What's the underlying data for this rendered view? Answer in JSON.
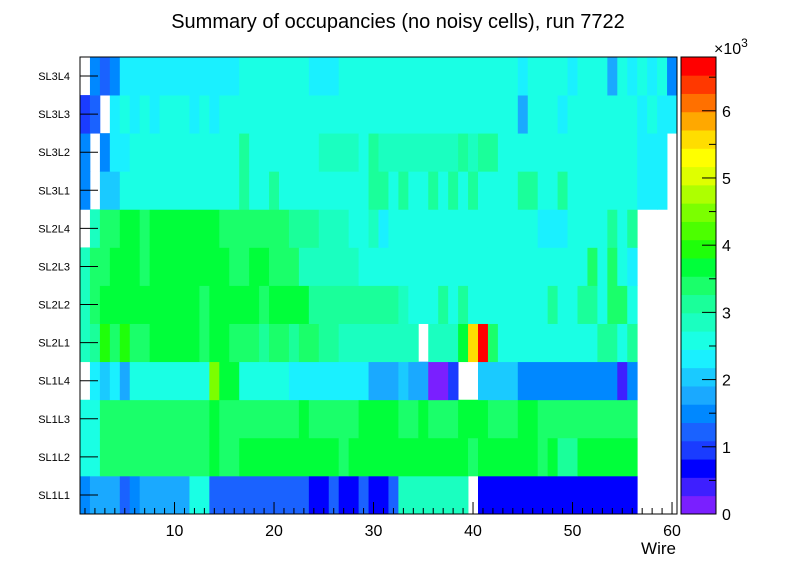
{
  "chart_data": {
    "type": "heatmap",
    "title": "Summary of occupancies (no noisy cells), run 7722",
    "xlabel": "Wire",
    "ylabel": "",
    "xlim": [
      0.5,
      60.5
    ],
    "x_ticks": [
      10,
      20,
      30,
      40,
      50,
      60
    ],
    "y_categories": [
      "SL1L1",
      "SL1L2",
      "SL1L3",
      "SL1L4",
      "SL2L1",
      "SL2L2",
      "SL2L3",
      "SL2L4",
      "SL3L1",
      "SL3L2",
      "SL3L3",
      "SL3L4"
    ],
    "color_scale": {
      "min": 0,
      "max": 6.8,
      "exponent_label": "×10",
      "exponent_power": "3",
      "ticks": [
        0,
        1,
        2,
        3,
        4,
        5,
        6
      ],
      "palette": [
        "#7a1fff",
        "#3e1fff",
        "#0000ff",
        "#1a3cff",
        "#1a62ff",
        "#0088ff",
        "#1aa9ff",
        "#1acaff",
        "#1af0ff",
        "#1affe4",
        "#1affc0",
        "#1aff9a",
        "#1aff6a",
        "#00ff3a",
        "#1fff0a",
        "#4cff00",
        "#7bff00",
        "#aeff00",
        "#dfff00",
        "#ffff00",
        "#ffdd00",
        "#ffa800",
        "#ff7000",
        "#ff3800",
        "#ff0000"
      ]
    },
    "rows": [
      {
        "name": "SL1L1",
        "segments": [
          [
            1,
            1,
            1.4
          ],
          [
            2,
            4,
            1.8
          ],
          [
            5,
            5,
            1.3
          ],
          [
            6,
            6,
            1.6
          ],
          [
            7,
            11,
            1.9
          ],
          [
            12,
            13,
            2.6
          ],
          [
            14,
            23,
            1.2
          ],
          [
            24,
            25,
            0.8
          ],
          [
            26,
            26,
            1.2
          ],
          [
            27,
            28,
            0.8
          ],
          [
            29,
            29,
            1.2
          ],
          [
            30,
            31,
            0.8
          ],
          [
            32,
            32,
            1.2
          ],
          [
            33,
            39,
            2.9
          ],
          [
            40,
            40,
            null
          ],
          [
            41,
            56,
            0.6
          ]
        ]
      },
      {
        "name": "SL1L2",
        "segments": [
          [
            1,
            2,
            2.6
          ],
          [
            3,
            13,
            3.4
          ],
          [
            14,
            14,
            3.8
          ],
          [
            15,
            16,
            3.4
          ],
          [
            17,
            26,
            3.8
          ],
          [
            27,
            27,
            3.4
          ],
          [
            28,
            39,
            3.8
          ],
          [
            40,
            40,
            3.4
          ],
          [
            41,
            46,
            3.8
          ],
          [
            47,
            47,
            3.4
          ],
          [
            48,
            48,
            3.6
          ],
          [
            49,
            50,
            3.1
          ],
          [
            51,
            56,
            3.8
          ]
        ]
      },
      {
        "name": "SL1L3",
        "segments": [
          [
            1,
            2,
            2.7
          ],
          [
            3,
            13,
            3.4
          ],
          [
            14,
            14,
            3.8
          ],
          [
            15,
            22,
            3.4
          ],
          [
            23,
            23,
            3.8
          ],
          [
            24,
            28,
            3.4
          ],
          [
            29,
            32,
            3.8
          ],
          [
            33,
            34,
            3.4
          ],
          [
            35,
            35,
            3.8
          ],
          [
            36,
            38,
            3.4
          ],
          [
            39,
            41,
            3.8
          ],
          [
            42,
            44,
            3.4
          ],
          [
            45,
            46,
            3.8
          ],
          [
            47,
            56,
            3.4
          ]
        ]
      },
      {
        "name": "SL1L4",
        "segments": [
          [
            1,
            1,
            null
          ],
          [
            2,
            2,
            2.4
          ],
          [
            3,
            3,
            2.0
          ],
          [
            4,
            4,
            2.4
          ],
          [
            5,
            5,
            1.8
          ],
          [
            6,
            8,
            2.5
          ],
          [
            9,
            13,
            2.7
          ],
          [
            14,
            14,
            4.5
          ],
          [
            15,
            16,
            3.6
          ],
          [
            17,
            21,
            2.7
          ],
          [
            22,
            29,
            2.4
          ],
          [
            30,
            32,
            1.8
          ],
          [
            33,
            33,
            2.0
          ],
          [
            34,
            35,
            1.8
          ],
          [
            36,
            37,
            0.2
          ],
          [
            38,
            38,
            1.0
          ],
          [
            39,
            40,
            null
          ],
          [
            41,
            44,
            2.0
          ],
          [
            45,
            46,
            1.6
          ],
          [
            47,
            54,
            1.4
          ],
          [
            55,
            55,
            0.4
          ],
          [
            56,
            56,
            1.6
          ]
        ]
      },
      {
        "name": "SL2L1",
        "segments": [
          [
            1,
            1,
            2.9
          ],
          [
            2,
            2,
            3.2
          ],
          [
            3,
            3,
            4.0
          ],
          [
            4,
            4,
            3.4
          ],
          [
            5,
            5,
            3.9
          ],
          [
            6,
            7,
            3.4
          ],
          [
            8,
            12,
            3.8
          ],
          [
            13,
            13,
            3.4
          ],
          [
            14,
            15,
            3.8
          ],
          [
            16,
            18,
            3.4
          ],
          [
            19,
            19,
            3.1
          ],
          [
            20,
            21,
            3.4
          ],
          [
            22,
            22,
            3.0
          ],
          [
            23,
            24,
            3.4
          ],
          [
            25,
            26,
            3.1
          ],
          [
            27,
            34,
            2.9
          ],
          [
            35,
            35,
            null
          ],
          [
            36,
            38,
            2.9
          ],
          [
            39,
            39,
            3.6
          ],
          [
            40,
            40,
            5.6
          ],
          [
            41,
            41,
            6.8
          ],
          [
            42,
            42,
            3.4
          ],
          [
            43,
            52,
            2.7
          ],
          [
            53,
            54,
            3.1
          ],
          [
            55,
            55,
            2.7
          ],
          [
            56,
            56,
            3.2
          ]
        ]
      },
      {
        "name": "SL2L2",
        "segments": [
          [
            1,
            1,
            2.8
          ],
          [
            2,
            2,
            3.5
          ],
          [
            3,
            3,
            3.8
          ],
          [
            4,
            12,
            3.6
          ],
          [
            13,
            13,
            3.3
          ],
          [
            14,
            18,
            3.6
          ],
          [
            19,
            19,
            3.3
          ],
          [
            20,
            23,
            3.6
          ],
          [
            24,
            25,
            3.2
          ],
          [
            26,
            32,
            3.0
          ],
          [
            33,
            33,
            2.8
          ],
          [
            34,
            36,
            2.6
          ],
          [
            37,
            37,
            3.2
          ],
          [
            38,
            38,
            2.6
          ],
          [
            39,
            39,
            3.2
          ],
          [
            40,
            41,
            2.6
          ],
          [
            42,
            47,
            2.7
          ],
          [
            48,
            48,
            3.2
          ],
          [
            49,
            50,
            2.6
          ],
          [
            51,
            52,
            3.2
          ],
          [
            53,
            53,
            2.6
          ],
          [
            54,
            55,
            3.3
          ],
          [
            56,
            56,
            2.6
          ]
        ]
      },
      {
        "name": "SL2L3",
        "segments": [
          [
            1,
            1,
            2.8
          ],
          [
            2,
            3,
            3.5
          ],
          [
            4,
            6,
            3.6
          ],
          [
            7,
            7,
            3.3
          ],
          [
            8,
            15,
            3.6
          ],
          [
            16,
            17,
            3.3
          ],
          [
            18,
            19,
            3.6
          ],
          [
            20,
            22,
            3.3
          ],
          [
            23,
            28,
            2.8
          ],
          [
            29,
            33,
            2.7
          ],
          [
            34,
            45,
            2.6
          ],
          [
            46,
            51,
            2.7
          ],
          [
            52,
            52,
            3.3
          ],
          [
            53,
            53,
            2.6
          ],
          [
            54,
            54,
            3.3
          ],
          [
            55,
            55,
            2.6
          ],
          [
            56,
            56,
            2.4
          ]
        ]
      },
      {
        "name": "SL2L4",
        "segments": [
          [
            1,
            1,
            null
          ],
          [
            2,
            2,
            2.8
          ],
          [
            3,
            4,
            3.4
          ],
          [
            5,
            6,
            3.6
          ],
          [
            7,
            7,
            3.3
          ],
          [
            8,
            14,
            3.6
          ],
          [
            15,
            21,
            3.3
          ],
          [
            22,
            24,
            3.1
          ],
          [
            25,
            27,
            2.8
          ],
          [
            28,
            29,
            2.5
          ],
          [
            30,
            30,
            2.8
          ],
          [
            31,
            31,
            2.2
          ],
          [
            32,
            41,
            2.6
          ],
          [
            42,
            46,
            2.7
          ],
          [
            47,
            49,
            2.2
          ],
          [
            50,
            53,
            2.6
          ],
          [
            54,
            54,
            3.1
          ],
          [
            55,
            55,
            2.6
          ],
          [
            56,
            56,
            3.1
          ],
          [
            57,
            57,
            null
          ]
        ]
      },
      {
        "name": "SL3L1",
        "segments": [
          [
            1,
            1,
            1.4
          ],
          [
            2,
            2,
            null
          ],
          [
            3,
            4,
            2.0
          ],
          [
            5,
            16,
            2.6
          ],
          [
            17,
            17,
            3.0
          ],
          [
            18,
            19,
            2.6
          ],
          [
            20,
            20,
            3.1
          ],
          [
            21,
            29,
            2.6
          ],
          [
            30,
            31,
            3.0
          ],
          [
            32,
            32,
            2.6
          ],
          [
            33,
            33,
            3.1
          ],
          [
            34,
            35,
            2.6
          ],
          [
            36,
            36,
            3.0
          ],
          [
            37,
            37,
            2.6
          ],
          [
            38,
            38,
            3.0
          ],
          [
            39,
            39,
            2.6
          ],
          [
            40,
            40,
            3.2
          ],
          [
            41,
            44,
            2.6
          ],
          [
            45,
            46,
            3.0
          ],
          [
            47,
            48,
            2.6
          ],
          [
            49,
            49,
            3.1
          ],
          [
            50,
            56,
            2.6
          ],
          [
            57,
            58,
            2.4
          ],
          [
            59,
            59,
            2.2
          ],
          [
            60,
            60,
            null
          ]
        ]
      },
      {
        "name": "SL3L2",
        "segments": [
          [
            1,
            1,
            1.5
          ],
          [
            2,
            2,
            null
          ],
          [
            3,
            3,
            1.4
          ],
          [
            4,
            4,
            2.2
          ],
          [
            5,
            5,
            2.4
          ],
          [
            6,
            16,
            2.6
          ],
          [
            17,
            17,
            3.1
          ],
          [
            18,
            24,
            2.6
          ],
          [
            25,
            28,
            2.8
          ],
          [
            29,
            29,
            2.6
          ],
          [
            30,
            30,
            3.0
          ],
          [
            31,
            38,
            2.8
          ],
          [
            39,
            39,
            3.0
          ],
          [
            40,
            40,
            2.8
          ],
          [
            41,
            42,
            3.0
          ],
          [
            43,
            56,
            2.6
          ],
          [
            57,
            59,
            2.4
          ]
        ]
      },
      {
        "name": "SL3L3",
        "segments": [
          [
            1,
            1,
            0.9
          ],
          [
            2,
            2,
            1.3
          ],
          [
            3,
            3,
            null
          ],
          [
            4,
            4,
            2.2
          ],
          [
            5,
            5,
            2.5
          ],
          [
            6,
            6,
            2.2
          ],
          [
            7,
            7,
            2.5
          ],
          [
            8,
            8,
            2.2
          ],
          [
            9,
            11,
            2.5
          ],
          [
            12,
            12,
            2.2
          ],
          [
            13,
            13,
            2.5
          ],
          [
            14,
            14,
            2.2
          ],
          [
            15,
            31,
            2.6
          ],
          [
            32,
            44,
            2.6
          ],
          [
            45,
            45,
            1.9
          ],
          [
            46,
            48,
            2.6
          ],
          [
            49,
            49,
            2.4
          ],
          [
            50,
            56,
            2.6
          ],
          [
            57,
            57,
            2.3
          ],
          [
            58,
            58,
            2.6
          ],
          [
            59,
            60,
            2.3
          ]
        ]
      },
      {
        "name": "SL3L4",
        "segments": [
          [
            1,
            1,
            null
          ],
          [
            2,
            2,
            1.4
          ],
          [
            3,
            3,
            1.1
          ],
          [
            4,
            4,
            1.5
          ],
          [
            5,
            16,
            2.3
          ],
          [
            17,
            23,
            2.6
          ],
          [
            24,
            26,
            2.3
          ],
          [
            27,
            31,
            2.6
          ],
          [
            32,
            44,
            2.6
          ],
          [
            45,
            45,
            2.3
          ],
          [
            46,
            49,
            2.6
          ],
          [
            50,
            50,
            2.3
          ],
          [
            51,
            53,
            2.6
          ],
          [
            54,
            54,
            1.8
          ],
          [
            55,
            55,
            2.6
          ],
          [
            56,
            56,
            2.3
          ],
          [
            57,
            57,
            2.6
          ],
          [
            58,
            58,
            2.3
          ],
          [
            59,
            59,
            2.6
          ],
          [
            60,
            60,
            1.5
          ]
        ]
      }
    ]
  }
}
